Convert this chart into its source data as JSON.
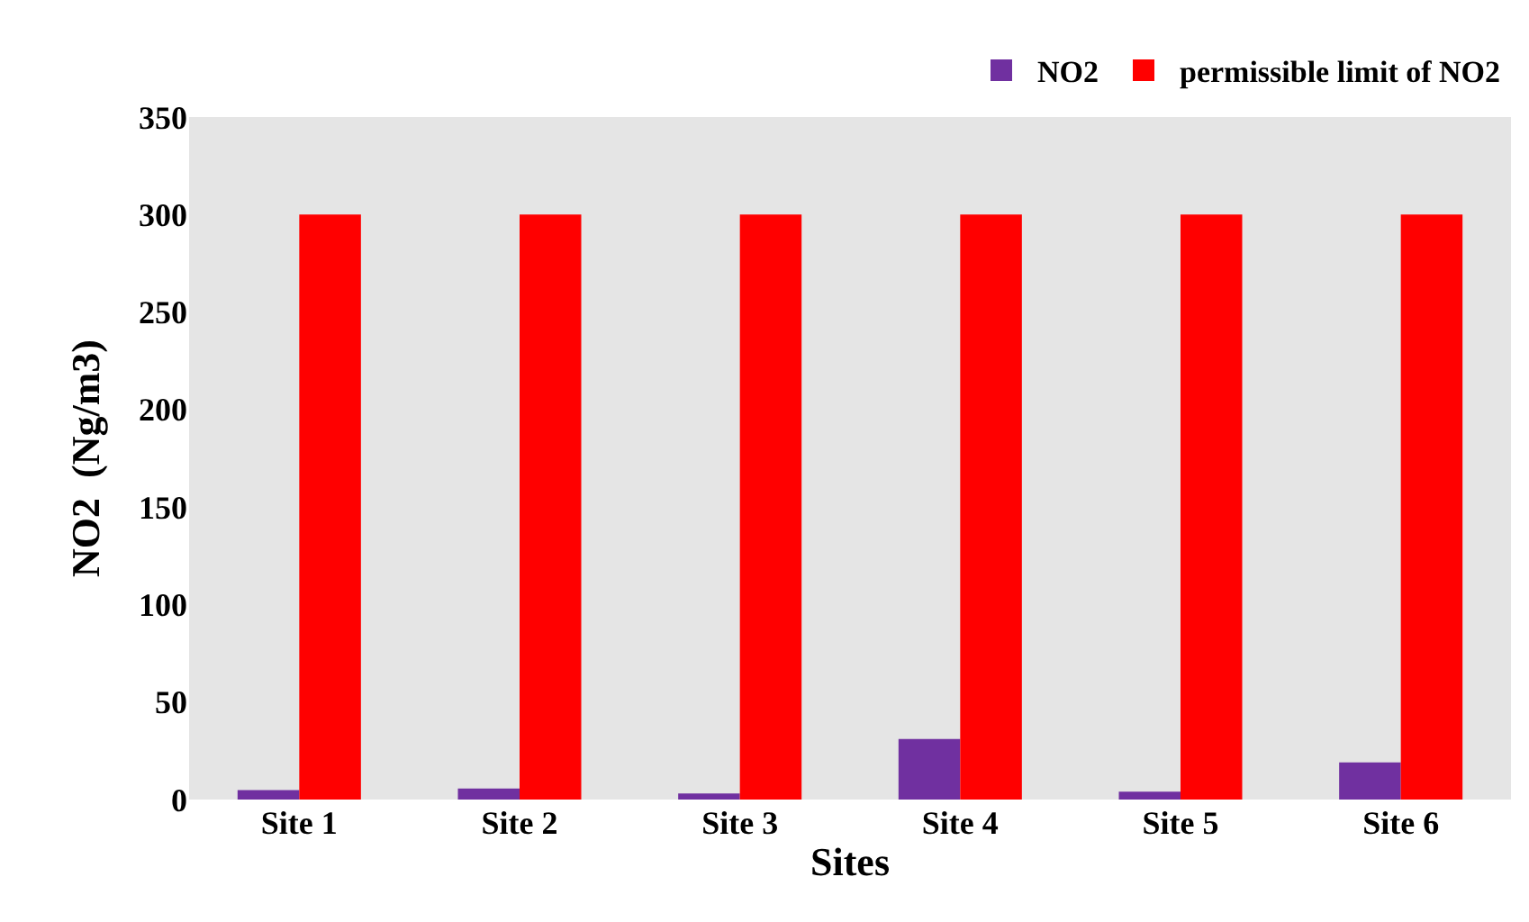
{
  "chart_data": {
    "type": "bar",
    "xlabel": "Sites",
    "ylabel": "NO2  (Ng/m3)",
    "categories": [
      "Site 1",
      "Site 2",
      "Site 3",
      "Site 4",
      "Site 5",
      "Site 6"
    ],
    "series": [
      {
        "name": "NO2",
        "color": "#7030a0",
        "values": [
          4.8,
          5.7,
          3.1,
          31,
          4,
          19
        ]
      },
      {
        "name": "permissible limit of NO2",
        "color": "#ff0000",
        "values": [
          300,
          300,
          300,
          300,
          300,
          300
        ]
      }
    ],
    "ylim": [
      0,
      350
    ],
    "yticks": [
      0,
      50,
      100,
      150,
      200,
      250,
      300,
      350
    ],
    "grid": false,
    "legend": "top right"
  }
}
